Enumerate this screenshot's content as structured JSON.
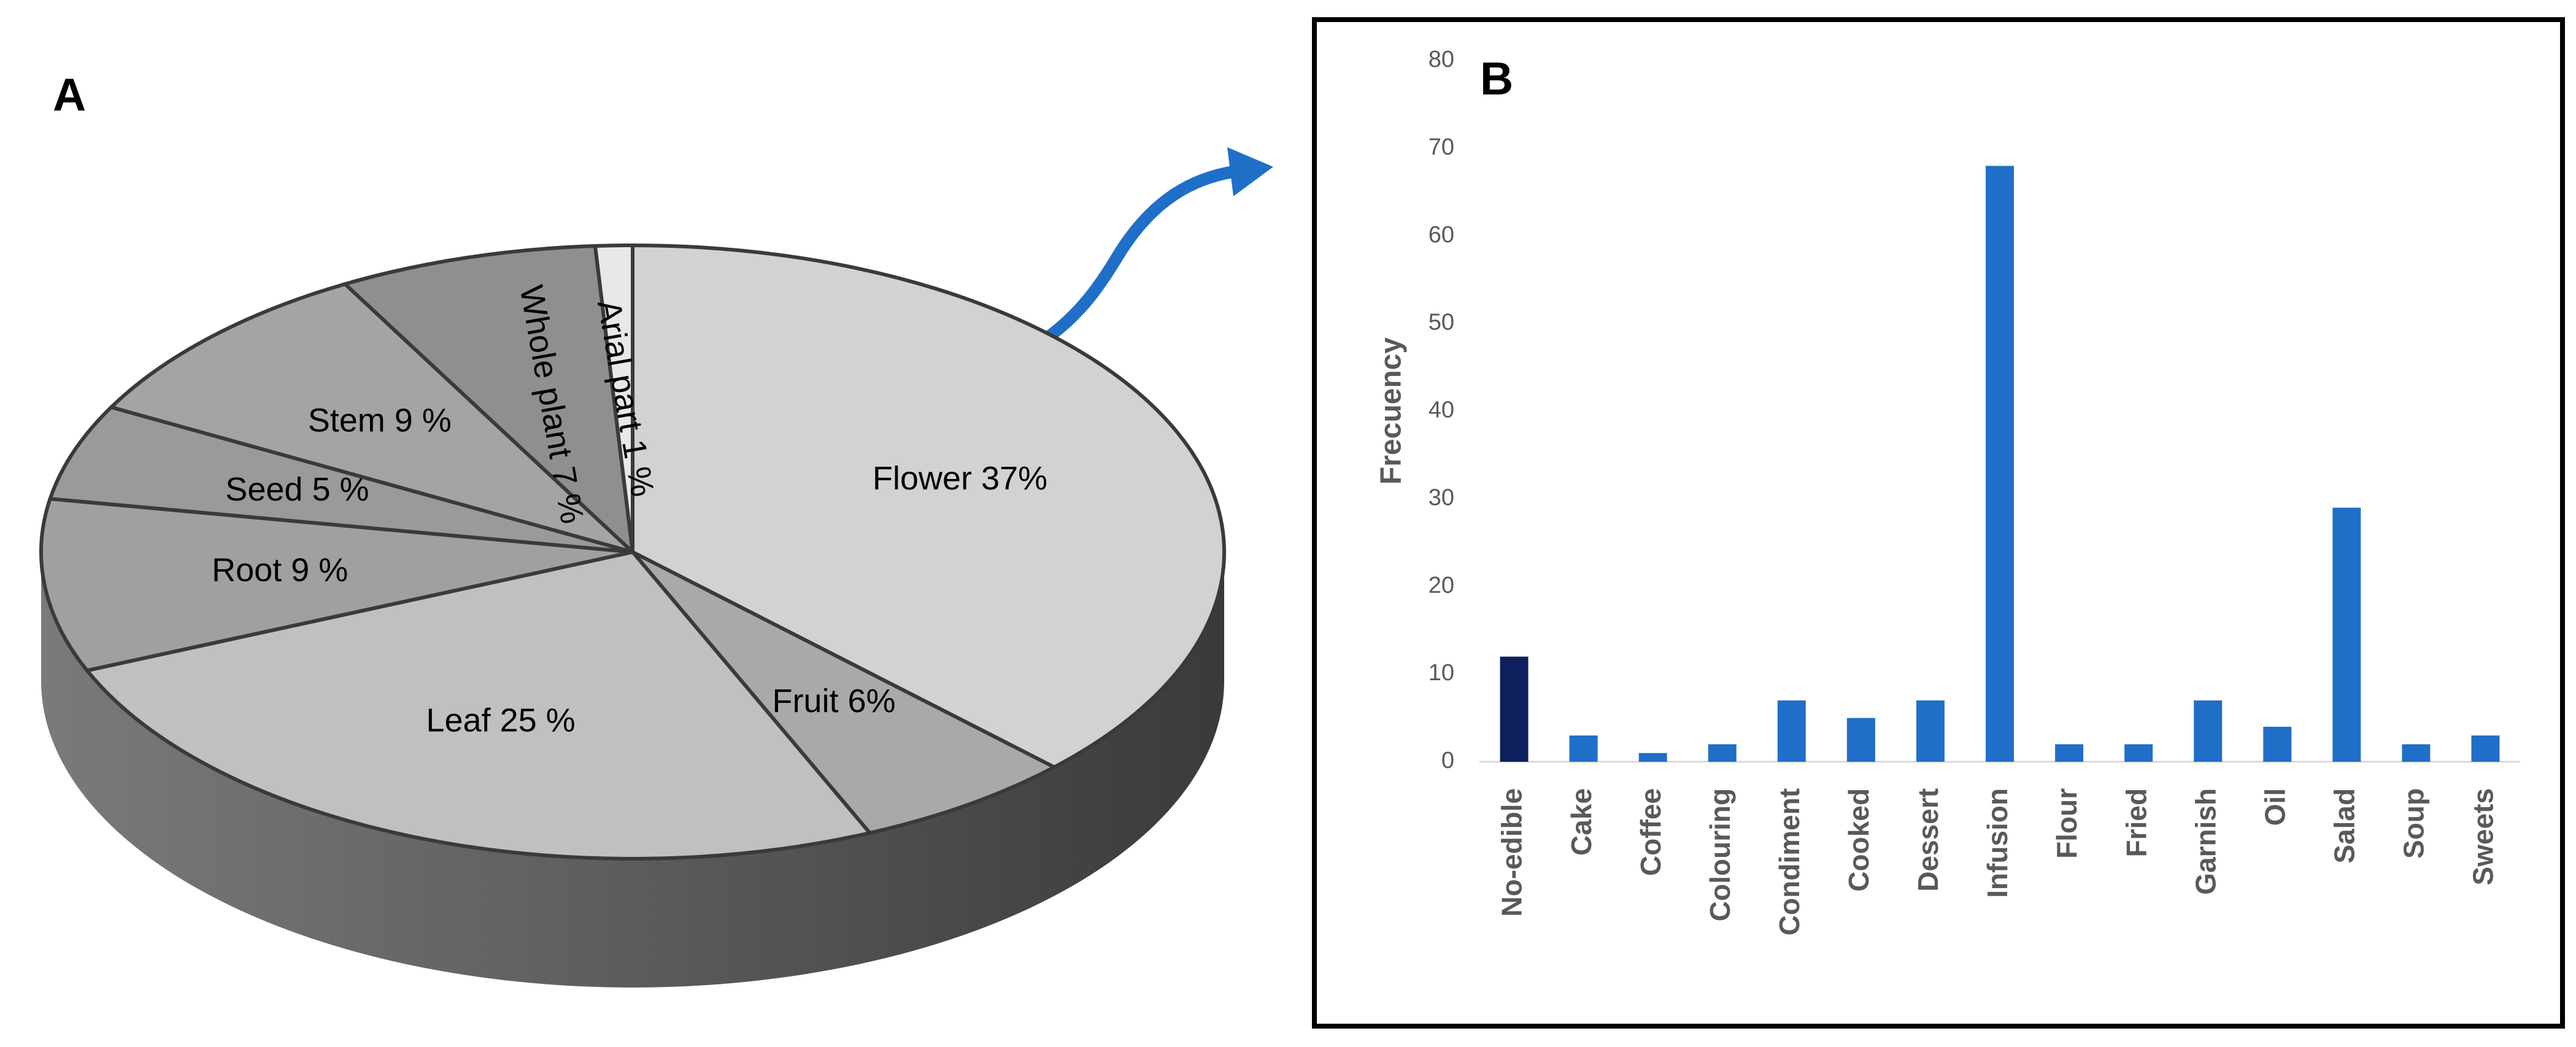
{
  "chart_data": [
    {
      "type": "pie",
      "label": "A",
      "categories": [
        "Flower",
        "Fruit",
        "Leaf",
        "Root",
        "Seed",
        "Stem",
        "Whole plant",
        "Arial part"
      ],
      "values": [
        37,
        6,
        25,
        9,
        5,
        9,
        7,
        1
      ],
      "value_labels": [
        "37%",
        "6%",
        "25 %",
        "9 %",
        "5 %",
        "9 %",
        "7 %",
        "1 %"
      ],
      "colors": [
        "#d2d2d2",
        "#a9a9a9",
        "#c0c0c0",
        "#a0a0a0",
        "#9a9a9a",
        "#a4a4a4",
        "#8f8f8f",
        "#e8e8e8"
      ]
    },
    {
      "type": "bar",
      "label": "B",
      "y_label": "Frecuency",
      "categories": [
        "No-edible",
        "Cake",
        "Coffee",
        "Colouring",
        "Condiment",
        "Cooked",
        "Dessert",
        "Infusion",
        "Flour",
        "Fried",
        "Garnish",
        "Oil",
        "Salad",
        "Soup",
        "Sweets"
      ],
      "values": [
        12,
        3,
        1,
        2,
        7,
        5,
        7,
        68,
        2,
        2,
        7,
        4,
        29,
        2,
        3
      ],
      "colors": [
        "#0d1f5c",
        "#1f6fc8",
        "#1f6fc8",
        "#1f6fc8",
        "#1f6fc8",
        "#1f6fc8",
        "#1f6fc8",
        "#1f6fc8",
        "#1f6fc8",
        "#1f6fc8",
        "#1f6fc8",
        "#1f6fc8",
        "#1f6fc8",
        "#1f6fc8",
        "#1f6fc8"
      ],
      "ylim": [
        0,
        80
      ],
      "yticks": [
        0,
        10,
        20,
        30,
        40,
        50,
        60,
        70,
        80
      ]
    }
  ]
}
